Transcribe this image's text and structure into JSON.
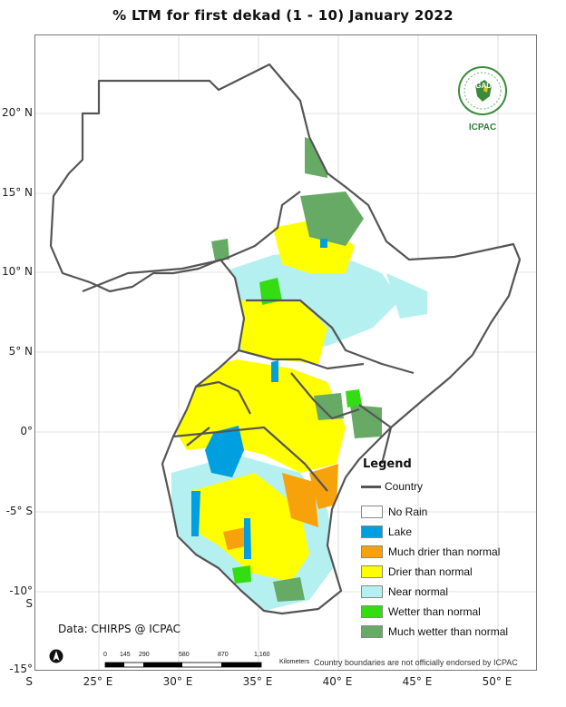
{
  "title": "% LTM for first dekad (1 - 10) January 2022",
  "map": {
    "latitude_labels": [
      "20° N",
      "15° N",
      "10° N",
      "5° N",
      "0°",
      "-5° S",
      "-10° S",
      "-15° S"
    ],
    "longitude_labels": [
      "25° E",
      "30° E",
      "35° E",
      "40° E",
      "45° E",
      "50° E"
    ]
  },
  "legend": {
    "title": "Legend",
    "country_label": "Country",
    "items": [
      {
        "label": "No Rain",
        "color": "#ffffff"
      },
      {
        "label": "Lake",
        "color": "#00a0e0"
      },
      {
        "label": "Much drier than normal",
        "color": "#f7a20a"
      },
      {
        "label": "Drier than normal",
        "color": "#ffff00"
      },
      {
        "label": "Near normal",
        "color": "#b4f0f0"
      },
      {
        "label": "Wetter than normal",
        "color": "#33dd11"
      },
      {
        "label": "Much wetter than normal",
        "color": "#66aa66"
      }
    ]
  },
  "logo": {
    "org": "IGAD",
    "name": "ICPAC"
  },
  "credit": "Data: CHIRPS @ ICPAC",
  "scale_bar": {
    "ticks": [
      "0",
      "145",
      "290",
      "580",
      "870",
      "1,160"
    ],
    "unit": "Kilometers"
  },
  "disclaimer": "Country boundaries are not officially endorsed by ICPAC",
  "colors": {
    "country_border": "#555555"
  }
}
